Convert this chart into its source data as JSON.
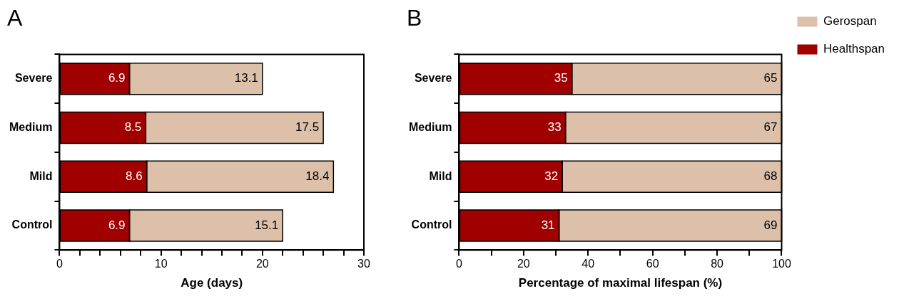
{
  "chart_data": [
    {
      "type": "bar",
      "title": "A",
      "orientation": "horizontal",
      "stacked": true,
      "xlabel": "Age (days)",
      "categories": [
        "Severe",
        "Medium",
        "Mild",
        "Control"
      ],
      "series": [
        {
          "color": "#a00000",
          "values": [
            6.9,
            8.5,
            8.6,
            6.9
          ]
        },
        {
          "color": "#dcc0aa",
          "values": [
            13.1,
            17.5,
            18.4,
            15.1
          ]
        }
      ],
      "xlim": [
        0,
        30
      ],
      "xticks": [
        0,
        {
          "value": 2,
          "label": null
        },
        {
          "value": 4,
          "label": null
        },
        {
          "value": 6,
          "label": null
        },
        {
          "value": 8,
          "label": null
        },
        10,
        {
          "value": 12,
          "label": null
        },
        {
          "value": 14,
          "label": null
        },
        {
          "value": 16,
          "label": null
        },
        {
          "value": 18,
          "label": null
        },
        20,
        {
          "value": 22,
          "label": null
        },
        {
          "value": 24,
          "label": null
        },
        {
          "value": 26,
          "label": null
        },
        {
          "value": 28,
          "label": null
        },
        30
      ],
      "grid": false,
      "legend": false,
      "data_labels": true
    },
    {
      "type": "bar",
      "title": "B",
      "orientation": "horizontal",
      "stacked": true,
      "xlabel": "Percentage of maximal lifespan (%)",
      "categories": [
        "Severe",
        "Medium",
        "Mild",
        "Control"
      ],
      "series": [
        {
          "name": "Healthspan",
          "color": "#a00000",
          "values": [
            35,
            33,
            32,
            31
          ]
        },
        {
          "name": "Gerospan",
          "color": "#dcc0aa",
          "values": [
            65,
            67,
            68,
            69
          ]
        }
      ],
      "xlim": [
        0,
        100
      ],
      "xticks": [
        0,
        {
          "value": 10,
          "label": null
        },
        20,
        {
          "value": 30,
          "label": null
        },
        40,
        {
          "value": 50,
          "label": null
        },
        60,
        {
          "value": 70,
          "label": null
        },
        80,
        {
          "value": 90,
          "label": null
        },
        100
      ],
      "grid": false,
      "legend": "right",
      "data_labels": true
    }
  ]
}
